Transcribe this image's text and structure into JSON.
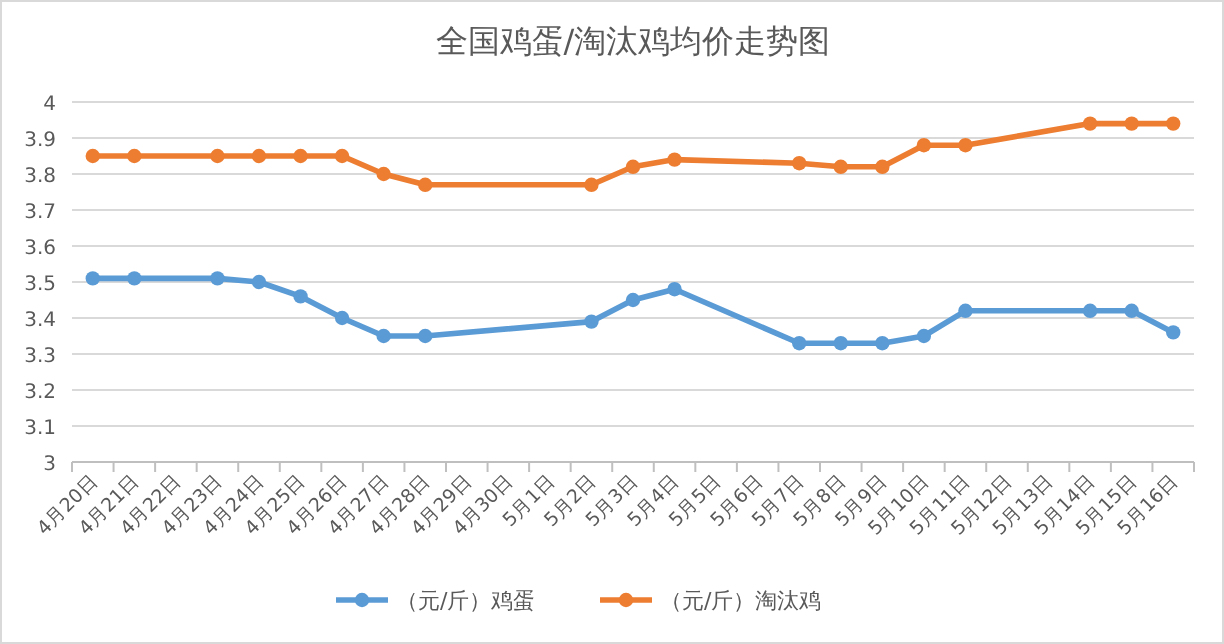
{
  "chart_data": {
    "type": "line",
    "title": "全国鸡蛋/淘汰鸡均价走势图",
    "categories": [
      "4月20日",
      "4月21日",
      "4月22日",
      "4月23日",
      "4月24日",
      "4月25日",
      "4月26日",
      "4月27日",
      "4月28日",
      "4月29日",
      "4月30日",
      "5月1日",
      "5月2日",
      "5月3日",
      "5月4日",
      "5月5日",
      "5月6日",
      "5月7日",
      "5月8日",
      "5月9日",
      "5月10日",
      "5月11日",
      "5月12日",
      "5月13日",
      "5月14日",
      "5月15日",
      "5月16日"
    ],
    "series": [
      {
        "name": "（元/斤）鸡蛋",
        "color": "#5b9bd5",
        "values": [
          3.51,
          3.51,
          null,
          3.51,
          3.5,
          3.46,
          3.4,
          3.35,
          3.35,
          null,
          null,
          null,
          3.39,
          3.45,
          3.48,
          null,
          null,
          3.33,
          3.33,
          3.33,
          3.35,
          3.42,
          null,
          null,
          3.42,
          3.42,
          3.36
        ]
      },
      {
        "name": "（元/斤）淘汰鸡",
        "color": "#ed7d31",
        "values": [
          3.85,
          3.85,
          null,
          3.85,
          3.85,
          3.85,
          3.85,
          3.8,
          3.77,
          null,
          null,
          null,
          3.77,
          3.82,
          3.84,
          null,
          null,
          3.83,
          3.82,
          3.82,
          3.88,
          3.88,
          null,
          null,
          3.94,
          3.94,
          3.94
        ]
      }
    ],
    "ylim": [
      3,
      4
    ],
    "yticks": [
      3,
      3.1,
      3.2,
      3.3,
      3.4,
      3.5,
      3.6,
      3.7,
      3.8,
      3.9,
      4
    ],
    "grid": "y",
    "legend": "bottom",
    "marker": "circle",
    "line_style": "solid"
  }
}
